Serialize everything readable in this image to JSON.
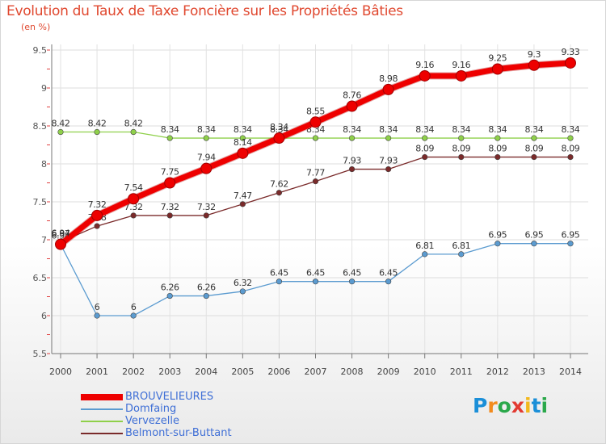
{
  "title": "Evolution du Taux de Taxe Foncière sur les Propriétés Bâties",
  "subtitle": "(en %)",
  "logo": {
    "text": "Proxiti",
    "colors": [
      "#1b8fd8",
      "#f28b1d",
      "#2aa84a",
      "#e23b32",
      "#f2b81d",
      "#1b8fd8",
      "#2aa84a"
    ]
  },
  "chart_data": {
    "type": "line",
    "title": "Evolution du Taux de Taxe Foncière sur les Propriétés Bâties",
    "ylabel": "(en %)",
    "xlabel": "",
    "x": [
      "2000",
      "2001",
      "2002",
      "2003",
      "2004",
      "2005",
      "2006",
      "2007",
      "2008",
      "2009",
      "2010",
      "2011",
      "2012",
      "2013",
      "2014"
    ],
    "ylim": [
      5.5,
      9.5
    ],
    "yticks": [
      "5.5",
      "6",
      "6.5",
      "7",
      "7.5",
      "8",
      "8.5",
      "9",
      "9.5"
    ],
    "grid": true,
    "legend_position": "bottom-left",
    "series": [
      {
        "name": "Domfaing",
        "color": "#5b9bd0",
        "values": [
          6.94,
          6,
          6,
          6.26,
          6.26,
          6.32,
          6.45,
          6.45,
          6.45,
          6.45,
          6.81,
          6.81,
          6.95,
          6.95,
          6.95
        ],
        "labels": [
          "6.94",
          "6",
          "6",
          "6.26",
          "6.26",
          "6.32",
          "6.45",
          "6.45",
          "6.45",
          "6.45",
          "6.81",
          "6.81",
          "6.95",
          "6.95",
          "6.95"
        ]
      },
      {
        "name": "Vervezelle",
        "color": "#8fd04a",
        "values": [
          8.42,
          8.42,
          8.42,
          8.34,
          8.34,
          8.34,
          8.34,
          8.34,
          8.34,
          8.34,
          8.34,
          8.34,
          8.34,
          8.34,
          8.34
        ],
        "labels": [
          "8.42",
          "8.42",
          "8.42",
          "8.34",
          "8.34",
          "8.34",
          "8.34",
          "8.34",
          "8.34",
          "8.34",
          "8.34",
          "8.34",
          "8.34",
          "8.34",
          "8.34"
        ]
      },
      {
        "name": "Belmont-sur-Buttant",
        "color": "#7a2a2a",
        "values": [
          6.97,
          7.18,
          7.32,
          7.32,
          7.32,
          7.47,
          7.62,
          7.77,
          7.93,
          7.93,
          8.09,
          8.09,
          8.09,
          8.09,
          8.09
        ],
        "labels": [
          "6.97",
          "7.18",
          "7.32",
          "7.32",
          "7.32",
          "7.47",
          "7.62",
          "7.77",
          "7.93",
          "7.93",
          "8.09",
          "8.09",
          "8.09",
          "8.09",
          "8.09"
        ]
      },
      {
        "name": "BROUVELIEURES",
        "color": "#ee0000",
        "values": [
          6.94,
          7.32,
          7.54,
          7.75,
          7.94,
          8.14,
          8.34,
          8.55,
          8.76,
          8.98,
          9.16,
          9.16,
          9.25,
          9.3,
          9.33
        ],
        "labels": [
          "6.94",
          "7.32",
          "7.54",
          "7.75",
          "7.94",
          "8.14",
          "8.34",
          "8.55",
          "8.76",
          "8.98",
          "9.16",
          "9.16",
          "9.25",
          "9.3",
          "9.33"
        ]
      }
    ],
    "legend_order": [
      "BROUVELIEURES",
      "Domfaing",
      "Vervezelle",
      "Belmont-sur-Buttant"
    ]
  }
}
